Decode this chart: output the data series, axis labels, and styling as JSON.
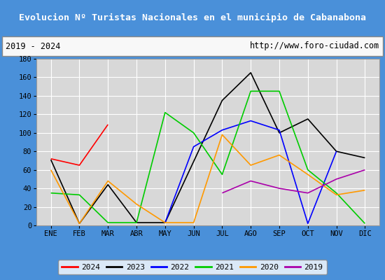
{
  "title": "Evolucion Nº Turistas Nacionales en el municipio de Cabanabona",
  "subtitle_left": "2019 - 2024",
  "subtitle_right": "http://www.foro-ciudad.com",
  "months": [
    "ENE",
    "FEB",
    "MAR",
    "ABR",
    "MAY",
    "JUN",
    "JUL",
    "AGO",
    "SEP",
    "OCT",
    "NOV",
    "DIC"
  ],
  "series": {
    "2024": {
      "color": "#ff0000",
      "data": [
        72,
        65,
        109,
        null,
        null,
        null,
        null,
        null,
        null,
        null,
        null,
        null
      ]
    },
    "2023": {
      "color": "#000000",
      "data": [
        71,
        2,
        44,
        3,
        3,
        null,
        135,
        165,
        100,
        115,
        80,
        73
      ]
    },
    "2022": {
      "color": "#0000ff",
      "data": [
        null,
        null,
        null,
        null,
        3,
        85,
        103,
        113,
        103,
        2,
        80,
        null
      ]
    },
    "2021": {
      "color": "#00cc00",
      "data": [
        35,
        33,
        3,
        3,
        122,
        100,
        55,
        145,
        145,
        60,
        35,
        2
      ]
    },
    "2020": {
      "color": "#ff9900",
      "data": [
        60,
        2,
        48,
        23,
        3,
        3,
        98,
        65,
        76,
        55,
        33,
        38
      ]
    },
    "2019": {
      "color": "#aa00aa",
      "data": [
        null,
        null,
        null,
        null,
        null,
        null,
        35,
        48,
        40,
        35,
        50,
        60
      ]
    }
  },
  "ylim": [
    0,
    180
  ],
  "yticks": [
    0,
    20,
    40,
    60,
    80,
    100,
    120,
    140,
    160,
    180
  ],
  "title_bg": "#4a90d9",
  "title_color": "#ffffff",
  "subtitle_bg": "#f0f0f0",
  "plot_bg": "#d8d8d8",
  "grid_color": "#ffffff",
  "legend_order": [
    "2024",
    "2023",
    "2022",
    "2021",
    "2020",
    "2019"
  ],
  "fig_width": 5.5,
  "fig_height": 4.0,
  "dpi": 100
}
